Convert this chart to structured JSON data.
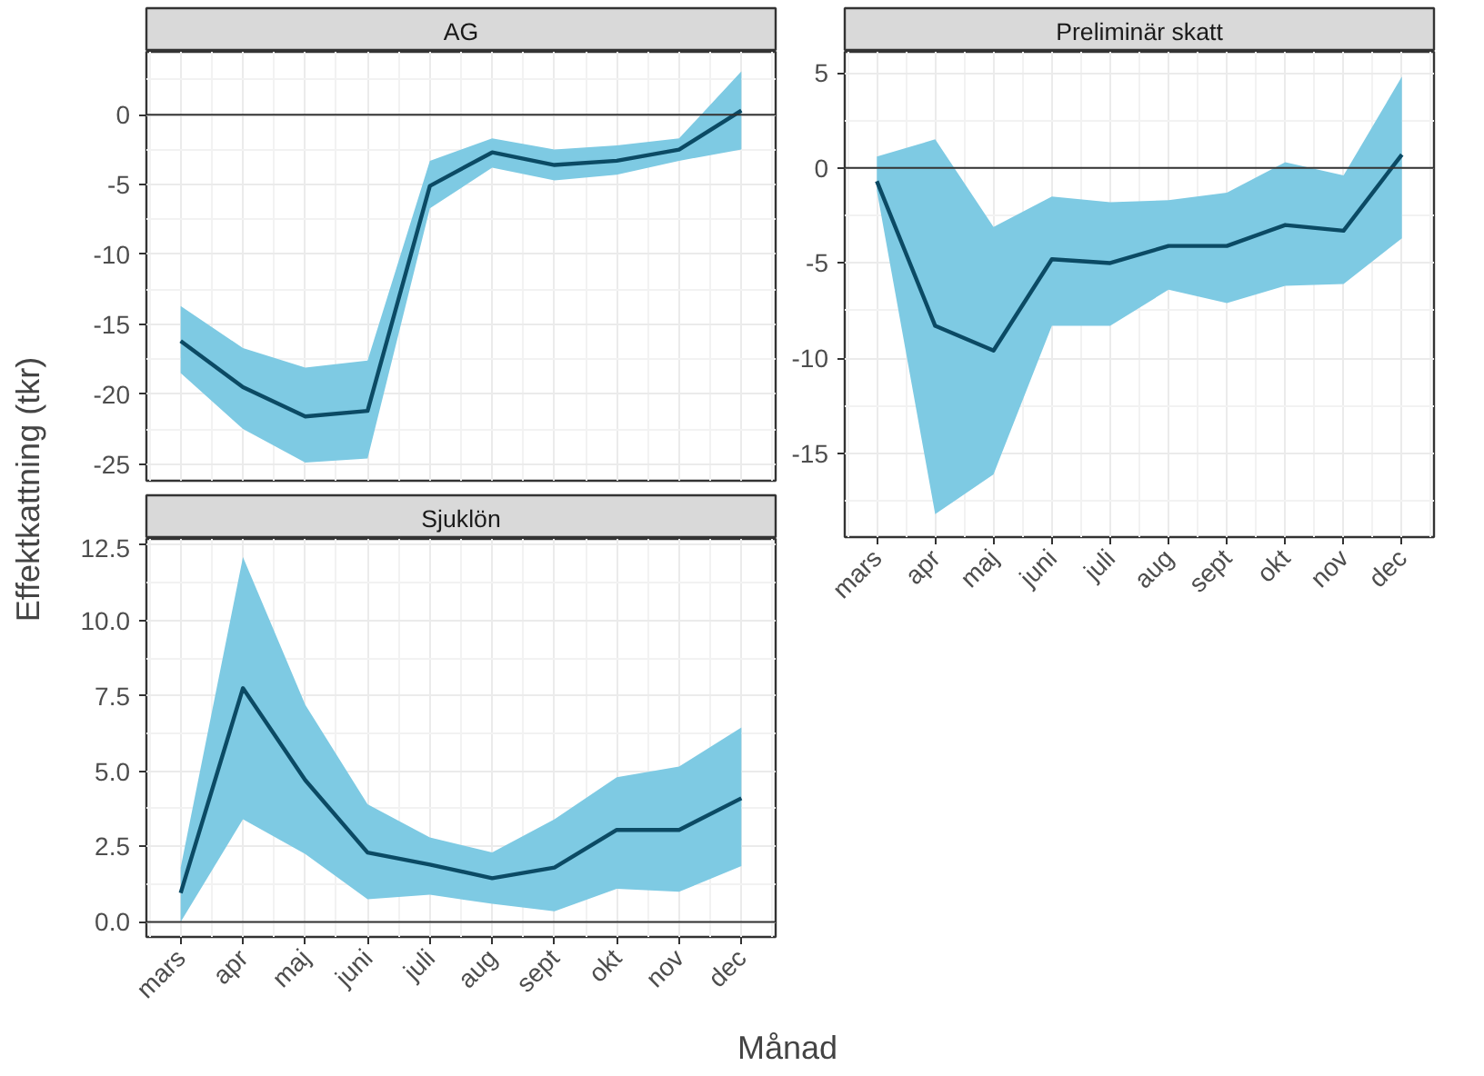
{
  "chart_data": [
    {
      "type": "line",
      "title": "AG",
      "categories": [
        null,
        null,
        null,
        null,
        null,
        null,
        null,
        null,
        null,
        null
      ],
      "ylim": [
        -26.2,
        4.5
      ],
      "yticks": [
        -25,
        -20,
        -15,
        -10,
        -5,
        0
      ],
      "grid": true,
      "tick_labels": "y",
      "ref_lines": [
        {
          "axis": "y",
          "value": 0,
          "color": "#333333"
        }
      ],
      "series": [
        {
          "color": "#0b4a64",
          "values": [
            -16.2,
            -19.5,
            -21.6,
            -21.2,
            -5.1,
            -2.7,
            -3.6,
            -3.3,
            -2.5,
            0.3
          ],
          "lower": [
            -18.5,
            -22.5,
            -24.9,
            -24.6,
            -6.7,
            -3.8,
            -4.7,
            -4.3,
            -3.3,
            -2.5
          ],
          "upper": [
            -13.7,
            -16.7,
            -18.1,
            -17.6,
            -3.3,
            -1.7,
            -2.5,
            -2.2,
            -1.7,
            3.1
          ]
        }
      ]
    },
    {
      "type": "line",
      "title": "Preliminär skatt",
      "categories": [
        "mars",
        "apr",
        "maj",
        "juni",
        "juli",
        "aug",
        "sept",
        "okt",
        "nov",
        "dec"
      ],
      "ylim": [
        -19.4,
        6.1
      ],
      "yticks": [
        -15,
        -10,
        -5,
        0,
        5
      ],
      "grid": true,
      "ref_lines": [
        {
          "axis": "y",
          "value": 0,
          "color": "#333333"
        }
      ],
      "series": [
        {
          "color": "#0b4a64",
          "values": [
            -0.7,
            -8.3,
            -9.6,
            -4.8,
            -5.0,
            -4.1,
            -4.1,
            -3.0,
            -3.3,
            0.7
          ],
          "lower": [
            -1.2,
            -18.2,
            -16.1,
            -8.3,
            -8.3,
            -6.4,
            -7.1,
            -6.2,
            -6.1,
            -3.7
          ],
          "upper": [
            0.6,
            1.5,
            -3.1,
            -1.5,
            -1.8,
            -1.7,
            -1.3,
            0.3,
            -0.4,
            4.8
          ]
        }
      ]
    },
    {
      "type": "line",
      "title": "Sjuklön",
      "xlabel": "Månad",
      "ylabel": "Effektkattning (tkr)",
      "categories": [
        "mars",
        "apr",
        "maj",
        "juni",
        "juli",
        "aug",
        "sept",
        "okt",
        "nov",
        "dec"
      ],
      "ylim": [
        -0.5,
        12.7
      ],
      "yticks": [
        {
          "value": 0,
          "label": "0.0"
        },
        {
          "value": 2.5,
          "label": "2.5"
        },
        {
          "value": 5,
          "label": "5.0"
        },
        {
          "value": 7.5,
          "label": "7.5"
        },
        {
          "value": 10,
          "label": "10.0"
        },
        {
          "value": 12.5,
          "label": "12.5"
        }
      ],
      "grid": true,
      "ref_lines": [
        {
          "axis": "y",
          "value": 0,
          "color": "#333333"
        }
      ],
      "series": [
        {
          "color": "#0b4a64",
          "values": [
            0.96,
            7.75,
            4.7,
            2.3,
            1.9,
            1.45,
            1.8,
            3.05,
            3.05,
            4.1
          ],
          "lower": [
            0.0,
            3.4,
            2.25,
            0.75,
            0.9,
            0.6,
            0.35,
            1.1,
            1.0,
            1.85
          ],
          "upper": [
            1.8,
            12.1,
            7.2,
            3.9,
            2.8,
            2.3,
            3.4,
            4.8,
            5.15,
            6.45
          ]
        }
      ]
    }
  ]
}
